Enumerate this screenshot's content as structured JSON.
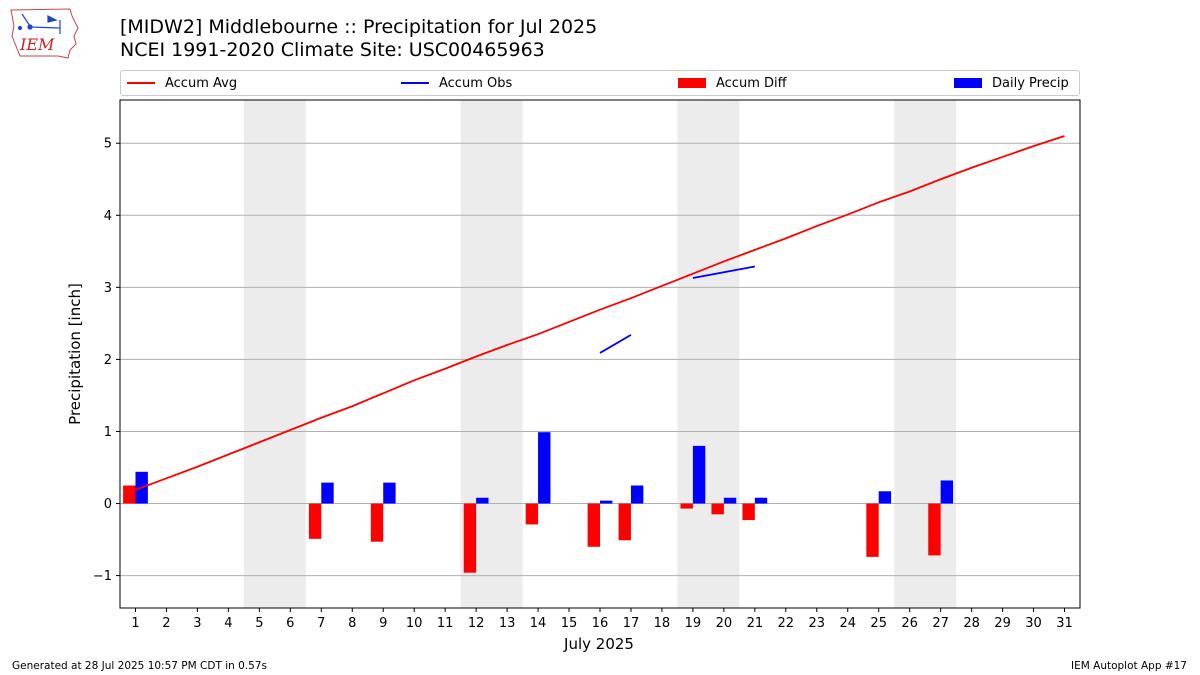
{
  "logo": {
    "text": "IEM",
    "color": "#cc2222"
  },
  "title_line1": "[MIDW2] Middlebourne :: Precipitation for Jul 2025",
  "title_line2": "NCEI 1991-2020 Climate Site: USC00465963",
  "footer": {
    "generated": "Generated at 28 Jul 2025 10:57 PM CDT in 0.57s",
    "app": "IEM Autoplot App #17"
  },
  "chart_data": {
    "type": "bar",
    "xlabel": "July 2025",
    "ylabel": "Precipitation [inch]",
    "xlim": [
      0.5,
      31.5
    ],
    "ylim": [
      -1.45,
      5.6
    ],
    "yticks": [
      -1,
      0,
      1,
      2,
      3,
      4,
      5
    ],
    "ytick_labels": [
      "−1",
      "0",
      "1",
      "2",
      "3",
      "4",
      "5"
    ],
    "x": [
      1,
      2,
      3,
      4,
      5,
      6,
      7,
      8,
      9,
      10,
      11,
      12,
      13,
      14,
      15,
      16,
      17,
      18,
      19,
      20,
      21,
      22,
      23,
      24,
      25,
      26,
      27,
      28,
      29,
      30,
      31
    ],
    "grid": "horizontal",
    "legend_position": "top",
    "weekend_shading_days": [
      [
        5,
        6
      ],
      [
        12,
        13
      ],
      [
        19,
        20
      ],
      [
        26,
        27
      ]
    ],
    "colors": {
      "avg": "#ff0000",
      "obs": "#0000ff",
      "diff": "#ff0000",
      "daily": "#0000ff",
      "shade": "#ececec",
      "grid": "#b0b0b0"
    },
    "series": [
      {
        "name": "Accum Avg",
        "kind": "line",
        "x": [
          1,
          2,
          3,
          4,
          5,
          6,
          7,
          8,
          9,
          10,
          11,
          12,
          13,
          14,
          15,
          16,
          17,
          18,
          19,
          20,
          21,
          22,
          23,
          24,
          25,
          26,
          27,
          28,
          29,
          30,
          31
        ],
        "values": [
          0.19,
          0.35,
          0.51,
          0.68,
          0.85,
          1.02,
          1.19,
          1.35,
          1.53,
          1.71,
          1.87,
          2.04,
          2.2,
          2.35,
          2.52,
          2.69,
          2.85,
          3.02,
          3.19,
          3.36,
          3.52,
          3.68,
          3.85,
          4.01,
          4.18,
          4.33,
          4.5,
          4.66,
          4.81,
          4.96,
          5.1
        ]
      },
      {
        "name": "Accum Obs",
        "kind": "line",
        "segments": [
          {
            "x": [
              16,
              17
            ],
            "values": [
              2.09,
              2.34
            ]
          },
          {
            "x": [
              19,
              20,
              21
            ],
            "values": [
              3.13,
              3.21,
              3.29
            ]
          }
        ]
      },
      {
        "name": "Accum Diff",
        "kind": "bar",
        "x": [
          1,
          7,
          9,
          12,
          14,
          16,
          17,
          19,
          20,
          21,
          25,
          27
        ],
        "values": [
          0.25,
          -0.49,
          -0.53,
          -0.96,
          -0.29,
          -0.6,
          -0.51,
          -0.07,
          -0.15,
          -0.23,
          -0.74,
          -0.72
        ]
      },
      {
        "name": "Daily Precip",
        "kind": "bar",
        "x": [
          1,
          7,
          9,
          12,
          14,
          16,
          17,
          19,
          20,
          21,
          25,
          27
        ],
        "values": [
          0.44,
          0.29,
          0.29,
          0.08,
          0.99,
          0.04,
          0.25,
          0.8,
          0.08,
          0.08,
          0.17,
          0.32
        ]
      }
    ]
  }
}
